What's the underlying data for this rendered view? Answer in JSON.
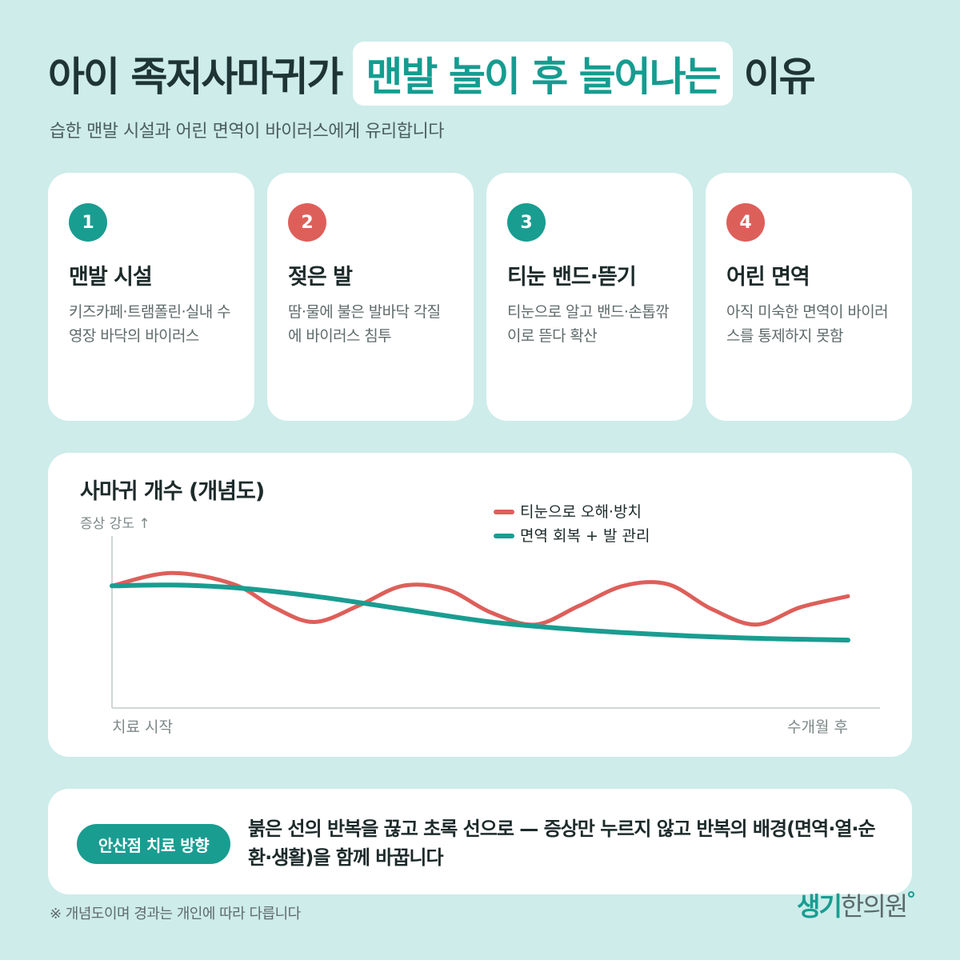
{
  "header": {
    "title_prefix": "아이 족저사마귀가",
    "title_highlight": "맨발 놀이 후 늘어나는",
    "title_suffix": "이유",
    "subtitle": "습한 맨발 시설과 어린 면역이 바이러스에게 유리합니다"
  },
  "cards": [
    {
      "number": "1",
      "title": "맨발 시설",
      "desc": "키즈카페·트램폴린·실내 수영장 바닥의 바이러스",
      "badge_color": "#199d91"
    },
    {
      "number": "2",
      "title": "젖은 발",
      "desc": "땀·물에 불은 발바닥 각질에 바이러스 침투",
      "badge_color": "#dd5f5a"
    },
    {
      "number": "3",
      "title": "티눈 밴드·뜯기",
      "desc": "티눈으로 알고 밴드·손톱깎이로 뜯다 확산",
      "badge_color": "#199d91"
    },
    {
      "number": "4",
      "title": "어린 면역",
      "desc": "아직 미숙한 면역이 바이러스를 통제하지 못함",
      "badge_color": "#dd5f5a"
    }
  ],
  "chart_data": {
    "type": "line",
    "title": "사마귀 개수 (개념도)",
    "ylabel": "증상 강도 ↑",
    "x_start_label": "치료 시작",
    "x_end_label": "수개월 후",
    "grid": false,
    "legend_position": "top-right",
    "ylim": [
      0,
      10
    ],
    "xlim": [
      0,
      10
    ],
    "series": [
      {
        "name": "티눈으로 오해·방치",
        "color": "#dd5f5a",
        "x": [
          0,
          0.8,
          1.65,
          2.2,
          2.75,
          3.35,
          3.95,
          4.55,
          5.15,
          5.75,
          6.35,
          6.95,
          7.55,
          8.15,
          8.75,
          9.35,
          10
        ],
        "y": [
          7.1,
          7.85,
          7.2,
          5.85,
          5.0,
          5.95,
          7.1,
          6.9,
          5.55,
          4.85,
          5.95,
          7.1,
          7.2,
          5.75,
          4.85,
          5.85,
          6.5
        ]
      },
      {
        "name": "면역 회복 + 발 관리",
        "color": "#199d91",
        "x": [
          0,
          0.8,
          1.65,
          2.75,
          3.95,
          5.15,
          6.35,
          7.55,
          8.75,
          10
        ],
        "y": [
          7.1,
          7.15,
          7.0,
          6.5,
          5.75,
          5.0,
          4.55,
          4.25,
          4.05,
          3.95
        ]
      }
    ]
  },
  "bottom": {
    "pill": "안산점 치료 방향",
    "text": "붉은 선의 반복을 끊고 초록 선으로 — 증상만 누르지 않고 반복의 배경(면역·열·순환·생활)을 함께 바꿉니다"
  },
  "footnote": "※ 개념도이며 경과는 개인에 따라 다릅니다",
  "logo": {
    "part1": "생기",
    "part2": "한의원"
  }
}
